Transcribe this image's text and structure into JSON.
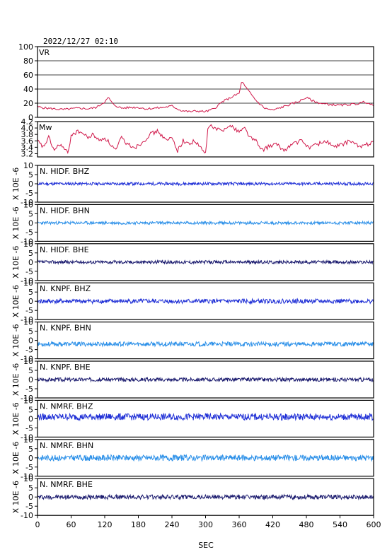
{
  "header": {
    "timestamp": "2022/12/27 02:10"
  },
  "colors": {
    "frame": "#000000",
    "vr_line": "#d0184a",
    "mw_line": "#d0184a",
    "bhz": "#1f2fd6",
    "bhn": "#2a8fe8",
    "bhe": "#1a1a6e"
  },
  "chart_data": {
    "type": "line",
    "xlabel": "SEC",
    "xlim": [
      0,
      600
    ],
    "xticks": [
      "0",
      "60",
      "120",
      "180",
      "240",
      "300",
      "360",
      "420",
      "480",
      "540",
      "600"
    ],
    "panels": [
      {
        "name": "VR",
        "ylim": [
          0,
          100
        ],
        "yticks": [
          "0",
          "20",
          "40",
          "60",
          "80",
          "100"
        ],
        "grid": true,
        "color_key": "vr_line",
        "series": {
          "x": [
            0,
            15,
            30,
            45,
            60,
            75,
            90,
            105,
            120,
            127,
            135,
            150,
            165,
            180,
            195,
            210,
            225,
            240,
            255,
            270,
            285,
            300,
            315,
            330,
            345,
            360,
            365,
            370,
            380,
            390,
            405,
            420,
            435,
            450,
            465,
            480,
            495,
            510,
            525,
            540,
            555,
            570,
            585,
            600
          ],
          "y": [
            15,
            13,
            12,
            11,
            12,
            13,
            12,
            14,
            22,
            28,
            18,
            13,
            14,
            14,
            12,
            13,
            14,
            16,
            10,
            8,
            9,
            8,
            12,
            22,
            28,
            34,
            52,
            44,
            34,
            24,
            13,
            10,
            14,
            18,
            22,
            28,
            22,
            19,
            18,
            17,
            18,
            19,
            22,
            16
          ]
        }
      },
      {
        "name": "Mw",
        "ylim": [
          3.1,
          4.2
        ],
        "yticks": [
          "3.2",
          "3.4",
          "3.6",
          "3.8",
          "4.0",
          "4.2"
        ],
        "grid": false,
        "color_key": "mw_line",
        "series": {
          "x": [
            0,
            10,
            20,
            30,
            40,
            55,
            60,
            75,
            90,
            100,
            110,
            120,
            140,
            150,
            160,
            175,
            190,
            200,
            215,
            230,
            240,
            250,
            260,
            270,
            280,
            290,
            300,
            305,
            315,
            330,
            340,
            350,
            360,
            370,
            380,
            390,
            400,
            410,
            425,
            440,
            455,
            470,
            485,
            500,
            515,
            530,
            545,
            560,
            575,
            590,
            600
          ],
          "y": [
            3.6,
            3.4,
            3.7,
            3.3,
            3.5,
            3.2,
            3.8,
            3.9,
            3.7,
            3.8,
            3.6,
            3.7,
            3.3,
            3.7,
            3.5,
            3.4,
            3.6,
            3.8,
            3.9,
            3.6,
            3.7,
            3.3,
            3.6,
            3.5,
            3.6,
            3.4,
            3.2,
            4.1,
            4.0,
            3.9,
            4.1,
            4.0,
            3.9,
            4.0,
            3.7,
            3.6,
            3.3,
            3.4,
            3.5,
            3.3,
            3.5,
            3.6,
            3.4,
            3.5,
            3.6,
            3.4,
            3.5,
            3.6,
            3.4,
            3.5,
            3.6
          ]
        }
      }
    ],
    "traces": [
      {
        "name": "N. HIDF. BHZ",
        "color_key": "bhz",
        "amplitude": 0.8,
        "offset": 0,
        "seed": 11
      },
      {
        "name": "N. HIDF. BHN",
        "color_key": "bhn",
        "amplitude": 0.8,
        "offset": 0,
        "seed": 23
      },
      {
        "name": "N. HIDF. BHE",
        "color_key": "bhe",
        "amplitude": 0.9,
        "offset": 0,
        "seed": 37
      },
      {
        "name": "N. KNPF. BHZ",
        "color_key": "bhz",
        "amplitude": 1.2,
        "offset": 0,
        "seed": 41
      },
      {
        "name": "N. KNPF. BHN",
        "color_key": "bhn",
        "amplitude": 1.2,
        "offset": -2,
        "seed": 53
      },
      {
        "name": "N. KNPF. BHE",
        "color_key": "bhe",
        "amplitude": 1.0,
        "offset": 0,
        "seed": 67
      },
      {
        "name": "N. NMRF. BHZ",
        "color_key": "bhz",
        "amplitude": 1.8,
        "offset": 1,
        "seed": 79
      },
      {
        "name": "N. NMRF. BHN",
        "color_key": "bhn",
        "amplitude": 1.6,
        "offset": 0,
        "seed": 83
      },
      {
        "name": "N. NMRF. BHE",
        "color_key": "bhe",
        "amplitude": 1.2,
        "offset": 0,
        "seed": 97
      }
    ],
    "trace_ylim": [
      -10,
      10
    ],
    "trace_yticks": [
      "-10",
      "-5",
      "0",
      "5",
      "10"
    ],
    "trace_ylabel": "X 10E -6"
  }
}
